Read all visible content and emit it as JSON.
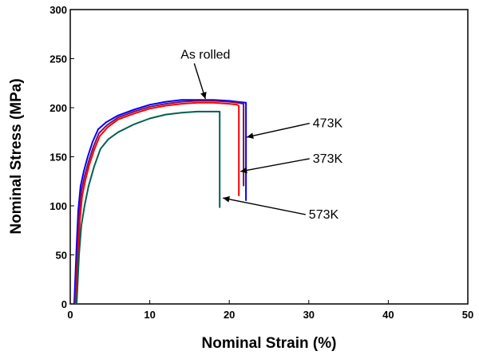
{
  "chart_data": {
    "type": "line",
    "title": "",
    "xlabel": "Nominal Strain (%)",
    "ylabel": "Nominal Stress (MPa)",
    "xlim": [
      0,
      50
    ],
    "ylim": [
      0,
      300
    ],
    "xticks": [
      0,
      10,
      20,
      30,
      40,
      50
    ],
    "yticks": [
      0,
      50,
      100,
      150,
      200,
      250,
      300
    ],
    "grid": false,
    "legend": "none",
    "series": [
      {
        "label": "As rolled",
        "color": "#0000ff",
        "x": [
          0.5,
          0.8,
          1,
          1.3,
          1.7,
          2.2,
          2.8,
          3.5,
          4.5,
          6,
          8,
          10,
          12,
          14,
          16,
          18,
          20,
          21,
          22.1,
          22.1
        ],
        "y": [
          0,
          60,
          95,
          120,
          135,
          150,
          165,
          178,
          185,
          192,
          198,
          203,
          206,
          208,
          208,
          208,
          207,
          206,
          205,
          105
        ]
      },
      {
        "label": "473K",
        "color": "#7a1060",
        "x": [
          0.6,
          0.9,
          1.1,
          1.4,
          1.8,
          2.3,
          2.9,
          3.6,
          4.6,
          6,
          8,
          10,
          12,
          14,
          16,
          18,
          20,
          21,
          21.8,
          21.8
        ],
        "y": [
          0,
          55,
          90,
          115,
          130,
          145,
          160,
          174,
          182,
          190,
          196,
          201,
          204,
          206,
          207,
          207,
          206,
          205,
          204,
          120
        ]
      },
      {
        "label": "373K",
        "color": "#ff0000",
        "x": [
          0.7,
          1,
          1.2,
          1.5,
          1.9,
          2.4,
          3,
          3.7,
          4.7,
          6,
          8,
          10,
          12,
          14,
          16,
          18,
          20,
          21,
          21.2,
          21.2
        ],
        "y": [
          0,
          50,
          85,
          110,
          126,
          142,
          157,
          171,
          180,
          188,
          194,
          199,
          202,
          204,
          205,
          205,
          204,
          203,
          202,
          110
        ]
      },
      {
        "label": "573K",
        "color": "#006050",
        "x": [
          0.8,
          1.1,
          1.4,
          1.8,
          2.3,
          3,
          3.8,
          4.8,
          6,
          8,
          10,
          12,
          14,
          16,
          18,
          18.8,
          18.8
        ],
        "y": [
          0,
          50,
          80,
          100,
          120,
          140,
          158,
          168,
          175,
          183,
          189,
          193,
          195,
          196,
          196,
          196,
          98
        ]
      }
    ],
    "annotations": [
      {
        "text": "As rolled",
        "text_x": 17,
        "text_y": 250,
        "arrow_x": 17,
        "arrow_y": 209
      },
      {
        "text": "473K",
        "text_x": 30.5,
        "text_y": 180,
        "arrow_x": 22.2,
        "arrow_y": 170
      },
      {
        "text": "373K",
        "text_x": 30.5,
        "text_y": 144,
        "arrow_x": 21.4,
        "arrow_y": 135
      },
      {
        "text": "573K",
        "text_x": 30,
        "text_y": 87,
        "arrow_x": 19.2,
        "arrow_y": 108
      }
    ]
  }
}
